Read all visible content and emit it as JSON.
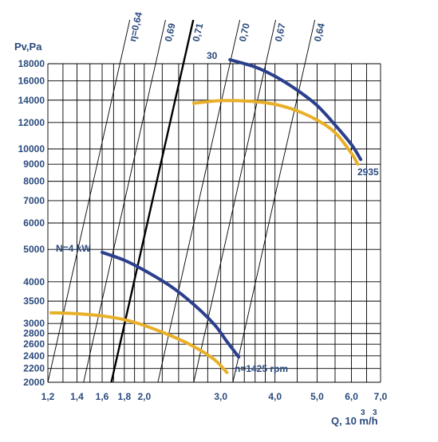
{
  "chart_data": {
    "type": "line",
    "title": "",
    "ylabel": "Pv,Pa",
    "xlabel": "Q, 10 m/h",
    "xlabel_superscripts": [
      "3",
      "3"
    ],
    "x_scale": "log",
    "y_scale": "log",
    "xlim": [
      1.2,
      7.0
    ],
    "ylim": [
      2000,
      18000
    ],
    "x_ticks": [
      {
        "value": 1.2,
        "label": "1,2"
      },
      {
        "value": 1.4,
        "label": "1,4"
      },
      {
        "value": 1.6,
        "label": "1,6"
      },
      {
        "value": 1.8,
        "label": "1,8"
      },
      {
        "value": 2.0,
        "label": "2,0"
      },
      {
        "value": 3.0,
        "label": "3,0"
      },
      {
        "value": 4.0,
        "label": "4,0"
      },
      {
        "value": 5.0,
        "label": "5,0"
      },
      {
        "value": 6.0,
        "label": "6,0"
      },
      {
        "value": 7.0,
        "label": "7,0"
      }
    ],
    "x_grid": [
      1.2,
      1.3,
      1.4,
      1.5,
      1.6,
      1.7,
      1.8,
      1.9,
      2.0,
      2.2,
      2.4,
      2.6,
      2.8,
      3.0,
      3.2,
      3.4,
      3.6,
      3.8,
      4.0,
      4.5,
      5.0,
      5.5,
      6.0,
      6.5,
      7.0
    ],
    "y_ticks": [
      {
        "value": 2000,
        "label": "2000"
      },
      {
        "value": 2200,
        "label": "2200"
      },
      {
        "value": 2400,
        "label": "2400"
      },
      {
        "value": 2600,
        "label": "2600"
      },
      {
        "value": 2800,
        "label": "2800"
      },
      {
        "value": 3000,
        "label": "3000"
      },
      {
        "value": 3500,
        "label": "3500"
      },
      {
        "value": 4000,
        "label": "4000"
      },
      {
        "value": 5000,
        "label": "5000"
      },
      {
        "value": 6000,
        "label": "6000"
      },
      {
        "value": 7000,
        "label": "7000"
      },
      {
        "value": 8000,
        "label": "8000"
      },
      {
        "value": 9000,
        "label": "9000"
      },
      {
        "value": 10000,
        "label": "10000"
      },
      {
        "value": 12000,
        "label": "12000"
      },
      {
        "value": 14000,
        "label": "14000"
      },
      {
        "value": 16000,
        "label": "16000"
      },
      {
        "value": 18000,
        "label": "18000"
      }
    ],
    "grid": true,
    "efficiency_lines": [
      {
        "label": "η=0,64",
        "q_at_ymin": 1.2,
        "highlight": false
      },
      {
        "label": "0,69",
        "q_at_ymin": 1.45,
        "highlight": false
      },
      {
        "label": "0,71",
        "q_at_ymin": 1.68,
        "highlight": true
      },
      {
        "label": "0,70",
        "q_at_ymin": 2.15,
        "highlight": false
      },
      {
        "label": "0,67",
        "q_at_ymin": 2.6,
        "highlight": false
      },
      {
        "label": "0,64",
        "q_at_ymin": 3.2,
        "highlight": false
      }
    ],
    "series": [
      {
        "name": "30",
        "curve": "pressure",
        "color": "#2b3f8c",
        "x": [
          3.15,
          3.6,
          4.0,
          4.5,
          5.0,
          5.5,
          6.0,
          6.3
        ],
        "y": [
          18500,
          17600,
          16500,
          15000,
          13500,
          11800,
          10300,
          9300
        ]
      },
      {
        "name": "",
        "curve": "power",
        "color": "#e8b028",
        "x": [
          2.6,
          3.0,
          3.5,
          4.0,
          4.5,
          5.0,
          5.5,
          6.0,
          6.2
        ],
        "y": [
          13700,
          13950,
          13900,
          13600,
          13000,
          12200,
          11200,
          9700,
          9000
        ]
      },
      {
        "name": "n=1425 rpm",
        "curve": "pressure",
        "color": "#2b3f8c",
        "x": [
          1.6,
          1.8,
          2.0,
          2.3,
          2.6,
          2.9,
          3.1,
          3.3
        ],
        "y": [
          4900,
          4640,
          4330,
          3880,
          3420,
          2980,
          2650,
          2380
        ]
      },
      {
        "name": "",
        "curve": "power",
        "color": "#e8b028",
        "x": [
          1.22,
          1.4,
          1.6,
          1.8,
          2.0,
          2.3,
          2.6,
          2.9,
          3.1
        ],
        "y": [
          3230,
          3210,
          3160,
          3080,
          2960,
          2760,
          2560,
          2340,
          2140
        ]
      }
    ],
    "annotations": {
      "top_speed": "30",
      "top_speed_end": "2935",
      "bottom_speed": "n=1425 rpm",
      "power": "N=4 kW"
    }
  }
}
